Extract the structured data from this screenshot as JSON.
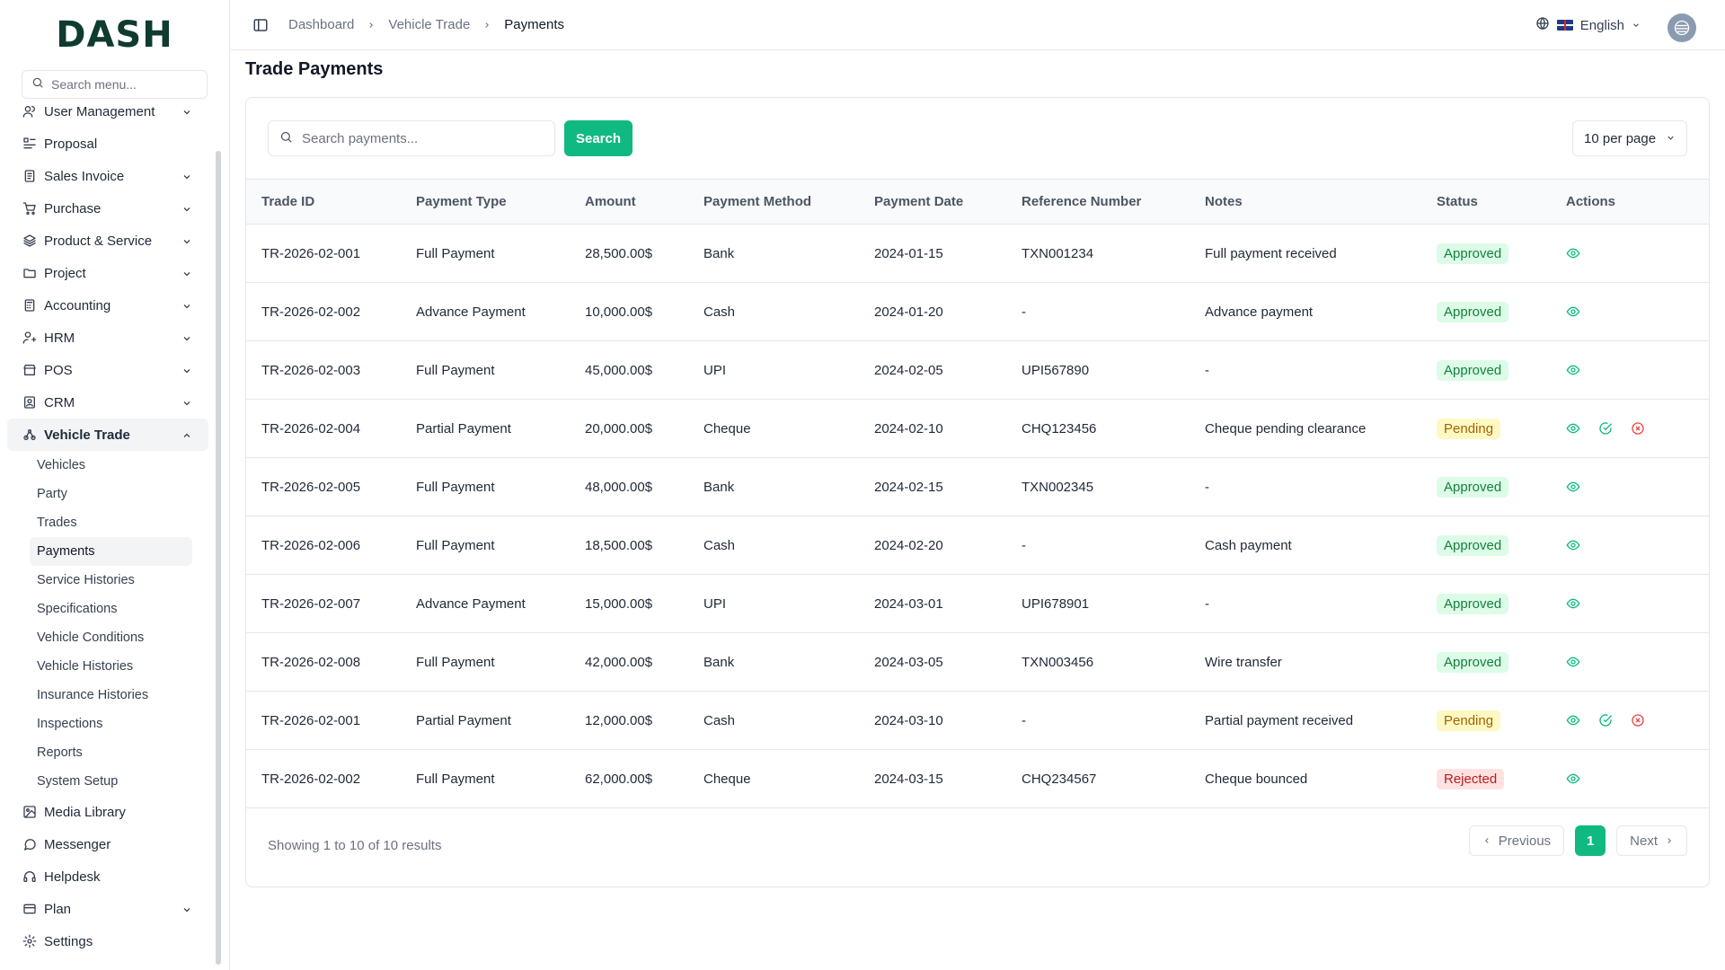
{
  "app": {
    "logo": "DASH"
  },
  "sidebar": {
    "search_placeholder": "Search menu...",
    "items": [
      {
        "label": "User Management",
        "icon": "users-icon",
        "chevron": true
      },
      {
        "label": "Proposal",
        "icon": "proposal-icon",
        "chevron": false
      },
      {
        "label": "Sales Invoice",
        "icon": "invoice-icon",
        "chevron": true
      },
      {
        "label": "Purchase",
        "icon": "cart-icon",
        "chevron": true
      },
      {
        "label": "Product & Service",
        "icon": "layers-icon",
        "chevron": true
      },
      {
        "label": "Project",
        "icon": "folder-icon",
        "chevron": true
      },
      {
        "label": "Accounting",
        "icon": "calculator-icon",
        "chevron": true
      },
      {
        "label": "HRM",
        "icon": "hrm-icon",
        "chevron": true
      },
      {
        "label": "POS",
        "icon": "store-icon",
        "chevron": true
      },
      {
        "label": "CRM",
        "icon": "crm-icon",
        "chevron": true
      },
      {
        "label": "Vehicle Trade",
        "icon": "vehicle-trade-icon",
        "chevron": true
      }
    ],
    "sub_items": [
      "Vehicles",
      "Party",
      "Trades",
      "Payments",
      "Service Histories",
      "Specifications",
      "Vehicle Conditions",
      "Vehicle Histories",
      "Insurance Histories",
      "Inspections",
      "Reports",
      "System Setup"
    ],
    "bottom_items": [
      {
        "label": "Media Library",
        "icon": "image-icon",
        "chevron": false
      },
      {
        "label": "Messenger",
        "icon": "chat-icon",
        "chevron": false
      },
      {
        "label": "Helpdesk",
        "icon": "headset-icon",
        "chevron": false
      },
      {
        "label": "Plan",
        "icon": "card-icon",
        "chevron": true
      },
      {
        "label": "Settings",
        "icon": "gear-icon",
        "chevron": false
      }
    ]
  },
  "header": {
    "breadcrumb": [
      "Dashboard",
      "Vehicle Trade",
      "Payments"
    ],
    "language": "English"
  },
  "page": {
    "title": "Trade Payments",
    "search_placeholder": "Search payments...",
    "search_button": "Search",
    "per_page": "10 per page"
  },
  "table": {
    "columns": [
      "Trade ID",
      "Payment Type",
      "Amount",
      "Payment Method",
      "Payment Date",
      "Reference Number",
      "Notes",
      "Status",
      "Actions"
    ],
    "rows": [
      {
        "id": "TR-2026-02-001",
        "type": "Full Payment",
        "amount": "28,500.00$",
        "method": "Bank",
        "date": "2024-01-15",
        "ref": "TXN001234",
        "notes": "Full payment received",
        "status": "Approved"
      },
      {
        "id": "TR-2026-02-002",
        "type": "Advance Payment",
        "amount": "10,000.00$",
        "method": "Cash",
        "date": "2024-01-20",
        "ref": "-",
        "notes": "Advance payment",
        "status": "Approved"
      },
      {
        "id": "TR-2026-02-003",
        "type": "Full Payment",
        "amount": "45,000.00$",
        "method": "UPI",
        "date": "2024-02-05",
        "ref": "UPI567890",
        "notes": "-",
        "status": "Approved"
      },
      {
        "id": "TR-2026-02-004",
        "type": "Partial Payment",
        "amount": "20,000.00$",
        "method": "Cheque",
        "date": "2024-02-10",
        "ref": "CHQ123456",
        "notes": "Cheque pending clearance",
        "status": "Pending"
      },
      {
        "id": "TR-2026-02-005",
        "type": "Full Payment",
        "amount": "48,000.00$",
        "method": "Bank",
        "date": "2024-02-15",
        "ref": "TXN002345",
        "notes": "-",
        "status": "Approved"
      },
      {
        "id": "TR-2026-02-006",
        "type": "Full Payment",
        "amount": "18,500.00$",
        "method": "Cash",
        "date": "2024-02-20",
        "ref": "-",
        "notes": "Cash payment",
        "status": "Approved"
      },
      {
        "id": "TR-2026-02-007",
        "type": "Advance Payment",
        "amount": "15,000.00$",
        "method": "UPI",
        "date": "2024-03-01",
        "ref": "UPI678901",
        "notes": "-",
        "status": "Approved"
      },
      {
        "id": "TR-2026-02-008",
        "type": "Full Payment",
        "amount": "42,000.00$",
        "method": "Bank",
        "date": "2024-03-05",
        "ref": "TXN003456",
        "notes": "Wire transfer",
        "status": "Approved"
      },
      {
        "id": "TR-2026-02-001",
        "type": "Partial Payment",
        "amount": "12,000.00$",
        "method": "Cash",
        "date": "2024-03-10",
        "ref": "-",
        "notes": "Partial payment received",
        "status": "Pending"
      },
      {
        "id": "TR-2026-02-002",
        "type": "Full Payment",
        "amount": "62,000.00$",
        "method": "Cheque",
        "date": "2024-03-15",
        "ref": "CHQ234567",
        "notes": "Cheque bounced",
        "status": "Rejected"
      }
    ]
  },
  "footer": {
    "showing": "Showing 1 to 10 of 10 results",
    "previous": "Previous",
    "next": "Next",
    "current_page": "1"
  },
  "colors": {
    "accent": "#10b981",
    "approved": "#15803d",
    "pending": "#a16207",
    "rejected": "#b91c1c"
  }
}
